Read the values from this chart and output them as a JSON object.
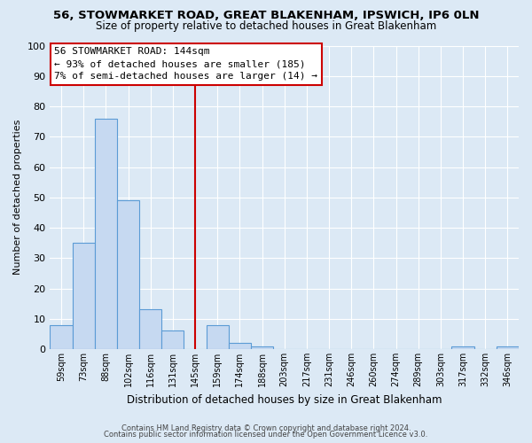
{
  "title1": "56, STOWMARKET ROAD, GREAT BLAKENHAM, IPSWICH, IP6 0LN",
  "title2": "Size of property relative to detached houses in Great Blakenham",
  "xlabel": "Distribution of detached houses by size in Great Blakenham",
  "ylabel": "Number of detached properties",
  "bin_labels": [
    "59sqm",
    "73sqm",
    "88sqm",
    "102sqm",
    "116sqm",
    "131sqm",
    "145sqm",
    "159sqm",
    "174sqm",
    "188sqm",
    "203sqm",
    "217sqm",
    "231sqm",
    "246sqm",
    "260sqm",
    "274sqm",
    "289sqm",
    "303sqm",
    "317sqm",
    "332sqm",
    "346sqm"
  ],
  "bar_values": [
    8,
    35,
    76,
    49,
    13,
    6,
    0,
    8,
    2,
    1,
    0,
    0,
    0,
    0,
    0,
    0,
    0,
    0,
    1,
    0,
    1
  ],
  "bar_color": "#c6d9f1",
  "bar_edge_color": "#5b9bd5",
  "vline_x": 6,
  "vline_color": "#cc0000",
  "ylim": [
    0,
    100
  ],
  "yticks": [
    0,
    10,
    20,
    30,
    40,
    50,
    60,
    70,
    80,
    90,
    100
  ],
  "annotation_title": "56 STOWMARKET ROAD: 144sqm",
  "annotation_line1": "← 93% of detached houses are smaller (185)",
  "annotation_line2": "7% of semi-detached houses are larger (14) →",
  "annotation_box_edge": "#cc0000",
  "footer1": "Contains HM Land Registry data © Crown copyright and database right 2024.",
  "footer2": "Contains public sector information licensed under the Open Government Licence v3.0.",
  "background_color": "#dce9f5",
  "plot_bg_color": "#dce9f5"
}
